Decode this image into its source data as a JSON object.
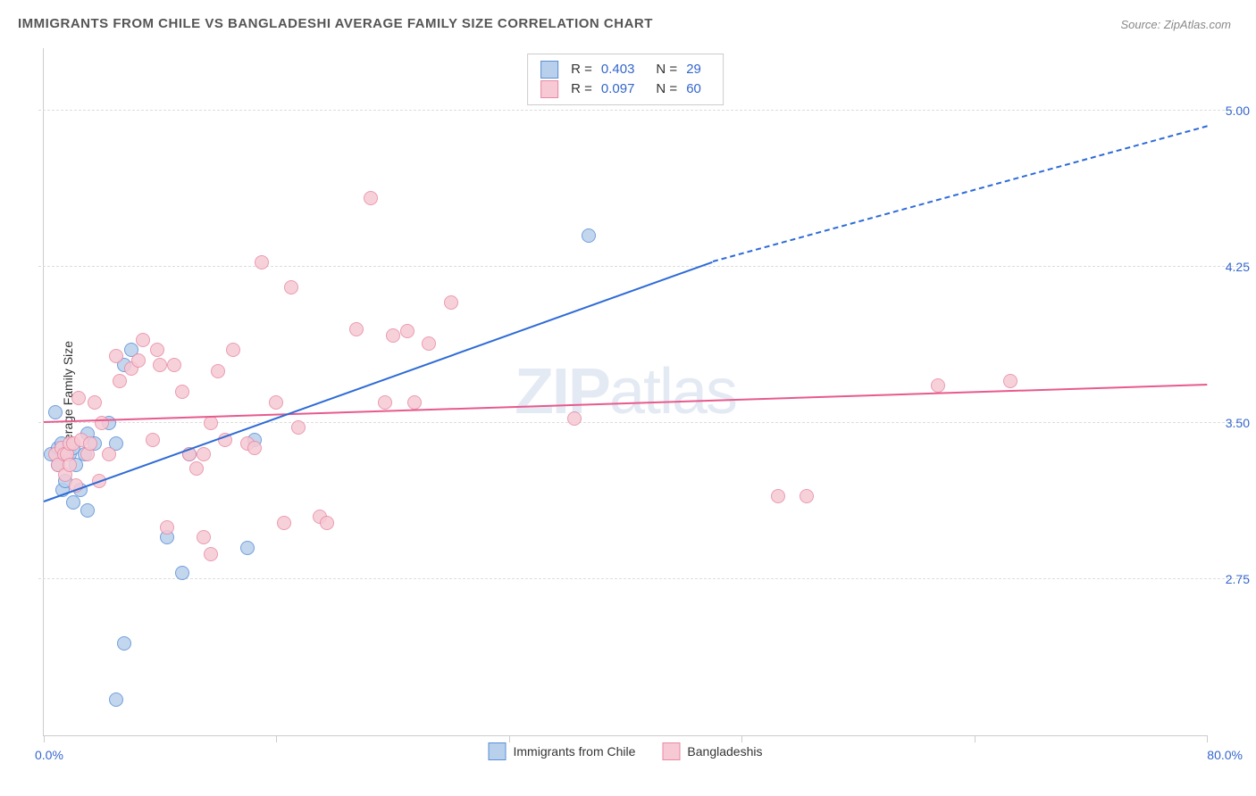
{
  "title": "IMMIGRANTS FROM CHILE VS BANGLADESHI AVERAGE FAMILY SIZE CORRELATION CHART",
  "source": "Source: ZipAtlas.com",
  "ylabel": "Average Family Size",
  "watermark_bold": "ZIP",
  "watermark_rest": "atlas",
  "chart": {
    "type": "scatter",
    "xlim": [
      0,
      80
    ],
    "ylim": [
      2.0,
      5.3
    ],
    "xlim_label_left": "0.0%",
    "xlim_label_right": "80.0%",
    "ytick_values": [
      2.75,
      3.5,
      4.25,
      5.0
    ],
    "ytick_labels": [
      "2.75",
      "3.50",
      "4.25",
      "5.00"
    ],
    "xtick_positions": [
      0,
      16,
      32,
      48,
      64,
      80
    ],
    "background_color": "#ffffff",
    "grid_color": "#dddddd",
    "axis_color": "#cccccc",
    "tick_label_color": "#3366cc",
    "marker_radius": 8,
    "series": [
      {
        "key": "chile",
        "label": "Immigrants from Chile",
        "fill": "#b8d0ec",
        "stroke": "#5b8fd6",
        "line_color": "#2e6bd6",
        "R": "0.403",
        "N": "29",
        "regression": {
          "x1": 0,
          "y1": 3.12,
          "x2": 46,
          "y2": 4.27,
          "x3": 80,
          "y3": 4.92
        },
        "points": [
          [
            0.5,
            3.35
          ],
          [
            0.8,
            3.55
          ],
          [
            1.0,
            3.3
          ],
          [
            1.0,
            3.38
          ],
          [
            1.2,
            3.4
          ],
          [
            1.3,
            3.18
          ],
          [
            1.5,
            3.22
          ],
          [
            1.6,
            3.35
          ],
          [
            1.8,
            3.35
          ],
          [
            2.0,
            3.12
          ],
          [
            2.0,
            3.38
          ],
          [
            2.2,
            3.3
          ],
          [
            2.5,
            3.18
          ],
          [
            2.8,
            3.35
          ],
          [
            3.0,
            3.08
          ],
          [
            3.0,
            3.45
          ],
          [
            3.5,
            3.4
          ],
          [
            4.5,
            3.5
          ],
          [
            5.0,
            3.4
          ],
          [
            5.0,
            2.17
          ],
          [
            5.5,
            2.44
          ],
          [
            5.5,
            3.78
          ],
          [
            6.0,
            3.85
          ],
          [
            8.5,
            2.95
          ],
          [
            9.5,
            2.78
          ],
          [
            10.0,
            3.35
          ],
          [
            14.0,
            2.9
          ],
          [
            14.5,
            3.42
          ],
          [
            37.5,
            4.4
          ]
        ]
      },
      {
        "key": "bangladeshi",
        "label": "Bangladeshis",
        "fill": "#f6c9d4",
        "stroke": "#e88aa4",
        "line_color": "#e75a8d",
        "R": "0.097",
        "N": "60",
        "regression": {
          "x1": 0,
          "y1": 3.5,
          "x2": 80,
          "y2": 3.68
        },
        "points": [
          [
            0.8,
            3.35
          ],
          [
            1.0,
            3.3
          ],
          [
            1.2,
            3.38
          ],
          [
            1.4,
            3.35
          ],
          [
            1.5,
            3.25
          ],
          [
            1.6,
            3.35
          ],
          [
            1.8,
            3.4
          ],
          [
            1.8,
            3.3
          ],
          [
            2.0,
            3.4
          ],
          [
            2.2,
            3.2
          ],
          [
            2.4,
            3.62
          ],
          [
            2.6,
            3.42
          ],
          [
            3.0,
            3.35
          ],
          [
            3.2,
            3.4
          ],
          [
            3.5,
            3.6
          ],
          [
            3.8,
            3.22
          ],
          [
            4.0,
            3.5
          ],
          [
            4.5,
            3.35
          ],
          [
            5.0,
            3.82
          ],
          [
            5.2,
            3.7
          ],
          [
            6.0,
            3.76
          ],
          [
            6.5,
            3.8
          ],
          [
            6.8,
            3.9
          ],
          [
            7.5,
            3.42
          ],
          [
            7.8,
            3.85
          ],
          [
            8.0,
            3.78
          ],
          [
            8.5,
            3.0
          ],
          [
            9.0,
            3.78
          ],
          [
            9.5,
            3.65
          ],
          [
            10.0,
            3.35
          ],
          [
            10.5,
            3.28
          ],
          [
            11.0,
            2.95
          ],
          [
            11.0,
            3.35
          ],
          [
            11.5,
            2.87
          ],
          [
            11.5,
            3.5
          ],
          [
            12.0,
            3.75
          ],
          [
            12.5,
            3.42
          ],
          [
            13.0,
            3.85
          ],
          [
            14.0,
            3.4
          ],
          [
            14.5,
            3.38
          ],
          [
            15.0,
            4.27
          ],
          [
            16.0,
            3.6
          ],
          [
            16.5,
            3.02
          ],
          [
            17.0,
            4.15
          ],
          [
            17.5,
            3.48
          ],
          [
            19.0,
            3.05
          ],
          [
            19.5,
            3.02
          ],
          [
            21.5,
            3.95
          ],
          [
            22.5,
            4.58
          ],
          [
            23.5,
            3.6
          ],
          [
            24.0,
            3.92
          ],
          [
            25.0,
            3.94
          ],
          [
            25.5,
            3.6
          ],
          [
            26.5,
            3.88
          ],
          [
            28.0,
            4.08
          ],
          [
            36.5,
            3.52
          ],
          [
            50.5,
            3.15
          ],
          [
            52.5,
            3.15
          ],
          [
            61.5,
            3.68
          ],
          [
            66.5,
            3.7
          ]
        ]
      }
    ]
  },
  "stats_labels": {
    "R": "R =",
    "N": "N ="
  }
}
